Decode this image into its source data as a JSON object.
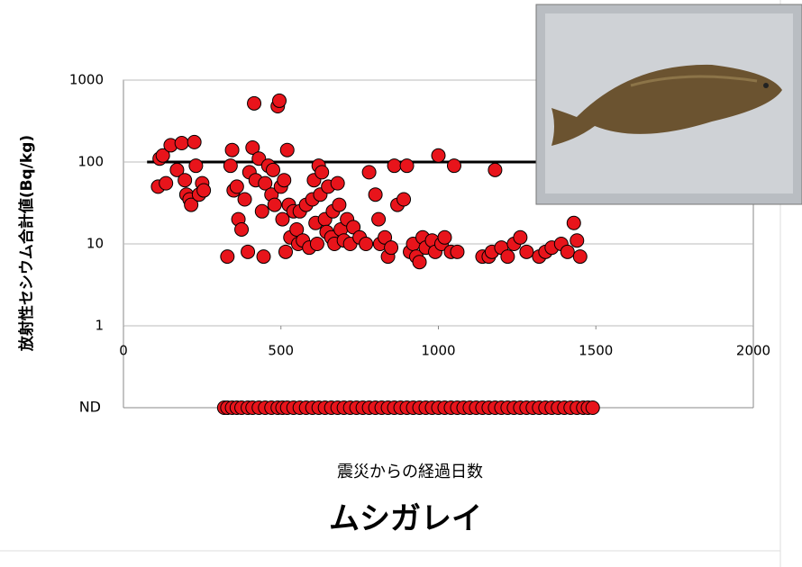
{
  "chart_data": {
    "type": "scatter",
    "title": "ムシガレイ",
    "x_label": "震災からの経過日数",
    "y_label": "放射性セシウム合計値(Bq/kg)",
    "xlim": [
      0,
      2000
    ],
    "xticks": [
      0,
      500,
      1000,
      1500,
      2000
    ],
    "ylim": [
      1,
      1000
    ],
    "yticks": [
      1,
      10,
      100,
      1000
    ],
    "log_y": true,
    "grid": true,
    "threshold": {
      "value": 100,
      "x_start": 75
    },
    "nd_label": "ND",
    "color": "#e8141b",
    "x": [
      110,
      115,
      125,
      135,
      150,
      170,
      185,
      195,
      200,
      210,
      215,
      225,
      230,
      240,
      250,
      255,
      330,
      340,
      345,
      350,
      360,
      365,
      375,
      385,
      395,
      400,
      410,
      415,
      420,
      430,
      440,
      445,
      450,
      460,
      470,
      475,
      480,
      490,
      495,
      500,
      505,
      510,
      515,
      520,
      525,
      530,
      540,
      550,
      555,
      560,
      570,
      580,
      590,
      600,
      605,
      610,
      615,
      620,
      625,
      630,
      640,
      645,
      650,
      660,
      665,
      670,
      680,
      685,
      690,
      700,
      710,
      720,
      730,
      750,
      770,
      780,
      800,
      810,
      815,
      830,
      840,
      850,
      860,
      870,
      890,
      900,
      910,
      920,
      930,
      940,
      950,
      960,
      980,
      990,
      1000,
      1010,
      1020,
      1040,
      1050,
      1060,
      1140,
      1160,
      1170,
      1180,
      1200,
      1220,
      1240,
      1260,
      1280,
      1320,
      1340,
      1360,
      1390,
      1410,
      1430,
      1440,
      1450
    ],
    "values": [
      50,
      110,
      120,
      55,
      160,
      80,
      170,
      60,
      40,
      35,
      30,
      175,
      90,
      40,
      55,
      45,
      7,
      90,
      140,
      45,
      50,
      20,
      15,
      35,
      8,
      75,
      150,
      520,
      60,
      110,
      25,
      7,
      55,
      90,
      40,
      80,
      30,
      480,
      560,
      50,
      20,
      60,
      8,
      140,
      30,
      12,
      25,
      15,
      10,
      25,
      11,
      30,
      9,
      35,
      60,
      18,
      10,
      90,
      40,
      75,
      20,
      14,
      50,
      12,
      25,
      10,
      55,
      30,
      15,
      11,
      20,
      10,
      16,
      12,
      10,
      75,
      40,
      20,
      10,
      12,
      7,
      9,
      90,
      30,
      35,
      90,
      8,
      10,
      7,
      6,
      12,
      9,
      11,
      8,
      120,
      10,
      12,
      8,
      90,
      8,
      7,
      7,
      8,
      80,
      9,
      7,
      10,
      12,
      8,
      7,
      8,
      9,
      10,
      8,
      18,
      11,
      7
    ],
    "nd_x": [
      320,
      330,
      345,
      360,
      375,
      395,
      410,
      430,
      450,
      470,
      490,
      505,
      520,
      540,
      560,
      580,
      600,
      620,
      640,
      660,
      680,
      700,
      720,
      740,
      760,
      780,
      800,
      820,
      840,
      860,
      880,
      900,
      920,
      940,
      960,
      980,
      1000,
      1020,
      1040,
      1060,
      1080,
      1100,
      1120,
      1140,
      1160,
      1180,
      1200,
      1220,
      1240,
      1260,
      1280,
      1300,
      1320,
      1340,
      1360,
      1380,
      1400,
      1420,
      1440,
      1460,
      1475,
      1490
    ]
  }
}
